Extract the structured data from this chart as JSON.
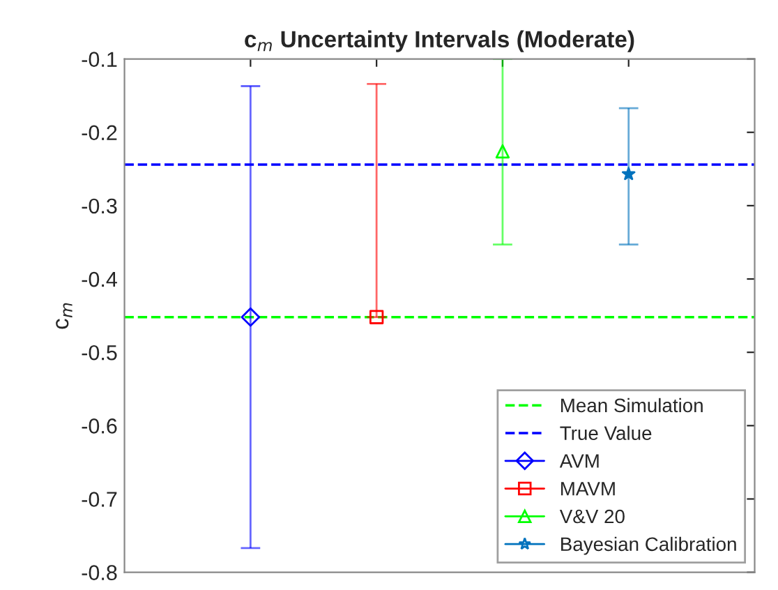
{
  "chart_data": {
    "type": "scatter",
    "title": "c$_{m}$ Uncertainty Intervals (Moderate)",
    "ylabel": "c$_{m}$",
    "categories": [
      null,
      null,
      null,
      null
    ],
    "series": [
      {
        "name": "AVM",
        "color": "#0000ff",
        "marker": "diamond",
        "values": [
          -0.452,
          null,
          null,
          null
        ],
        "errors": [
          [
            -0.767,
            -0.137
          ],
          null,
          null,
          null
        ]
      },
      {
        "name": "MAVM",
        "color": "#ff0000",
        "marker": "square",
        "values": [
          null,
          -0.452,
          null,
          null
        ],
        "errors": [
          null,
          [
            -0.452,
            -0.134
          ],
          null,
          null
        ]
      },
      {
        "name": "V&V 20",
        "color": "#00ff00",
        "marker": "triangle",
        "values": [
          null,
          null,
          -0.226,
          null
        ],
        "errors": [
          null,
          null,
          [
            -0.353,
            -0.1
          ],
          null
        ]
      },
      {
        "name": "Bayesian Calibration",
        "color": "#0072bd",
        "marker": "star",
        "values": [
          null,
          null,
          null,
          -0.257
        ],
        "errors": [
          null,
          null,
          null,
          [
            -0.353,
            -0.167
          ]
        ]
      }
    ],
    "ref_lines": [
      {
        "axis": "y",
        "value": -0.452,
        "label": "Mean Simulation",
        "color": "#00ff00",
        "line_style": "dashed"
      },
      {
        "axis": "y",
        "value": -0.244,
        "label": "True Value",
        "color": "#0000ff",
        "line_style": "dashed"
      }
    ],
    "ylim": [
      -0.8,
      -0.1
    ],
    "yticks": [
      -0.8,
      -0.7,
      -0.6,
      -0.5,
      -0.4,
      -0.3,
      -0.2,
      -0.1
    ],
    "grid": false,
    "legend": "bottom right"
  }
}
